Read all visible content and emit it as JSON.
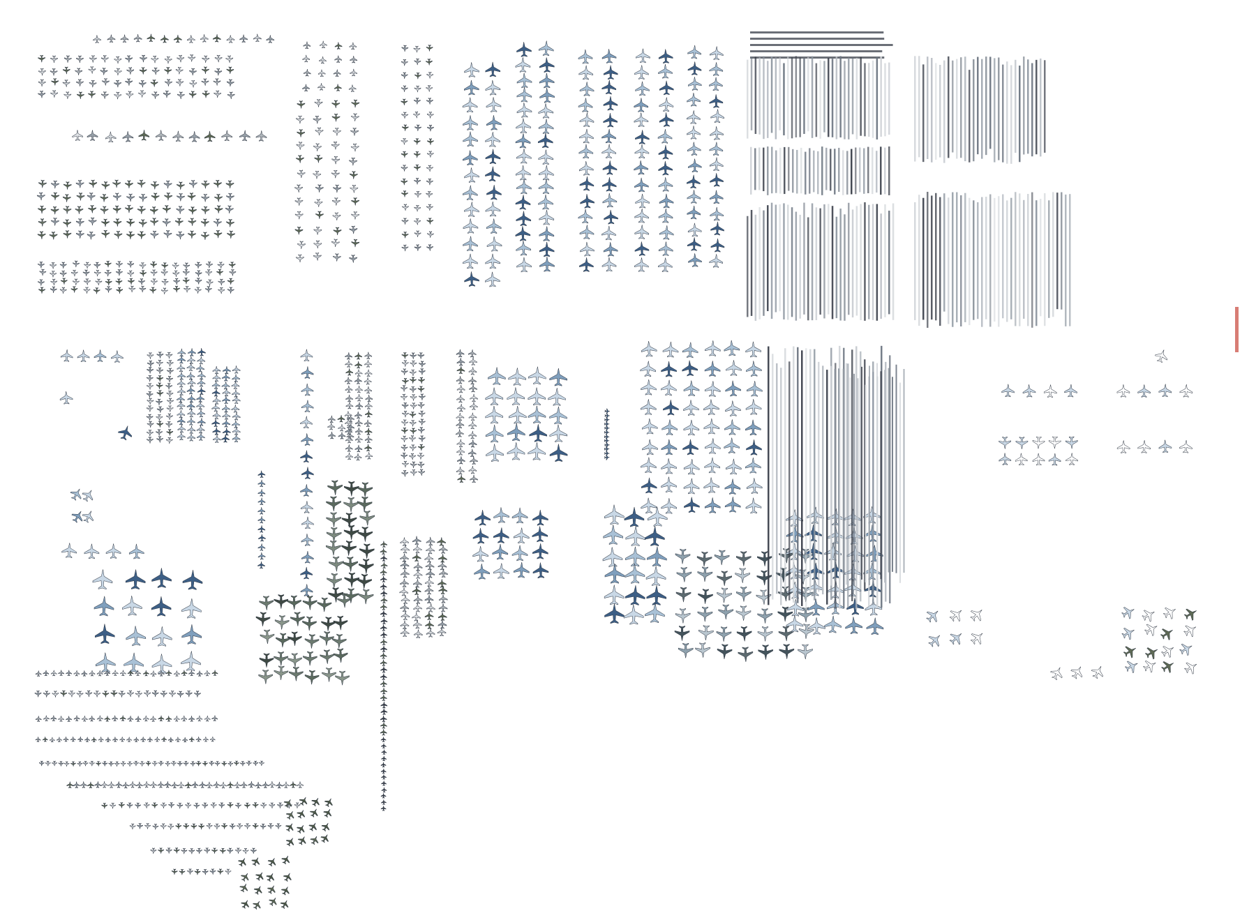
{
  "image": {
    "background": "#ffffff",
    "palette": {
      "plane_light": "#c9d8e6",
      "plane_mid": "#7f9fbd",
      "plane_dark": "#3d5f86",
      "plane_olive": "#5e6a55",
      "plane_grey": "#9aa3ab",
      "stripe_dark": "#3a3f4a",
      "stripe_light": "#b8bdc4",
      "accent_red": "#c8463b"
    },
    "icons": [
      "aircraft-icon",
      "small-aircraft-icon",
      "parked-row-stripe"
    ]
  }
}
